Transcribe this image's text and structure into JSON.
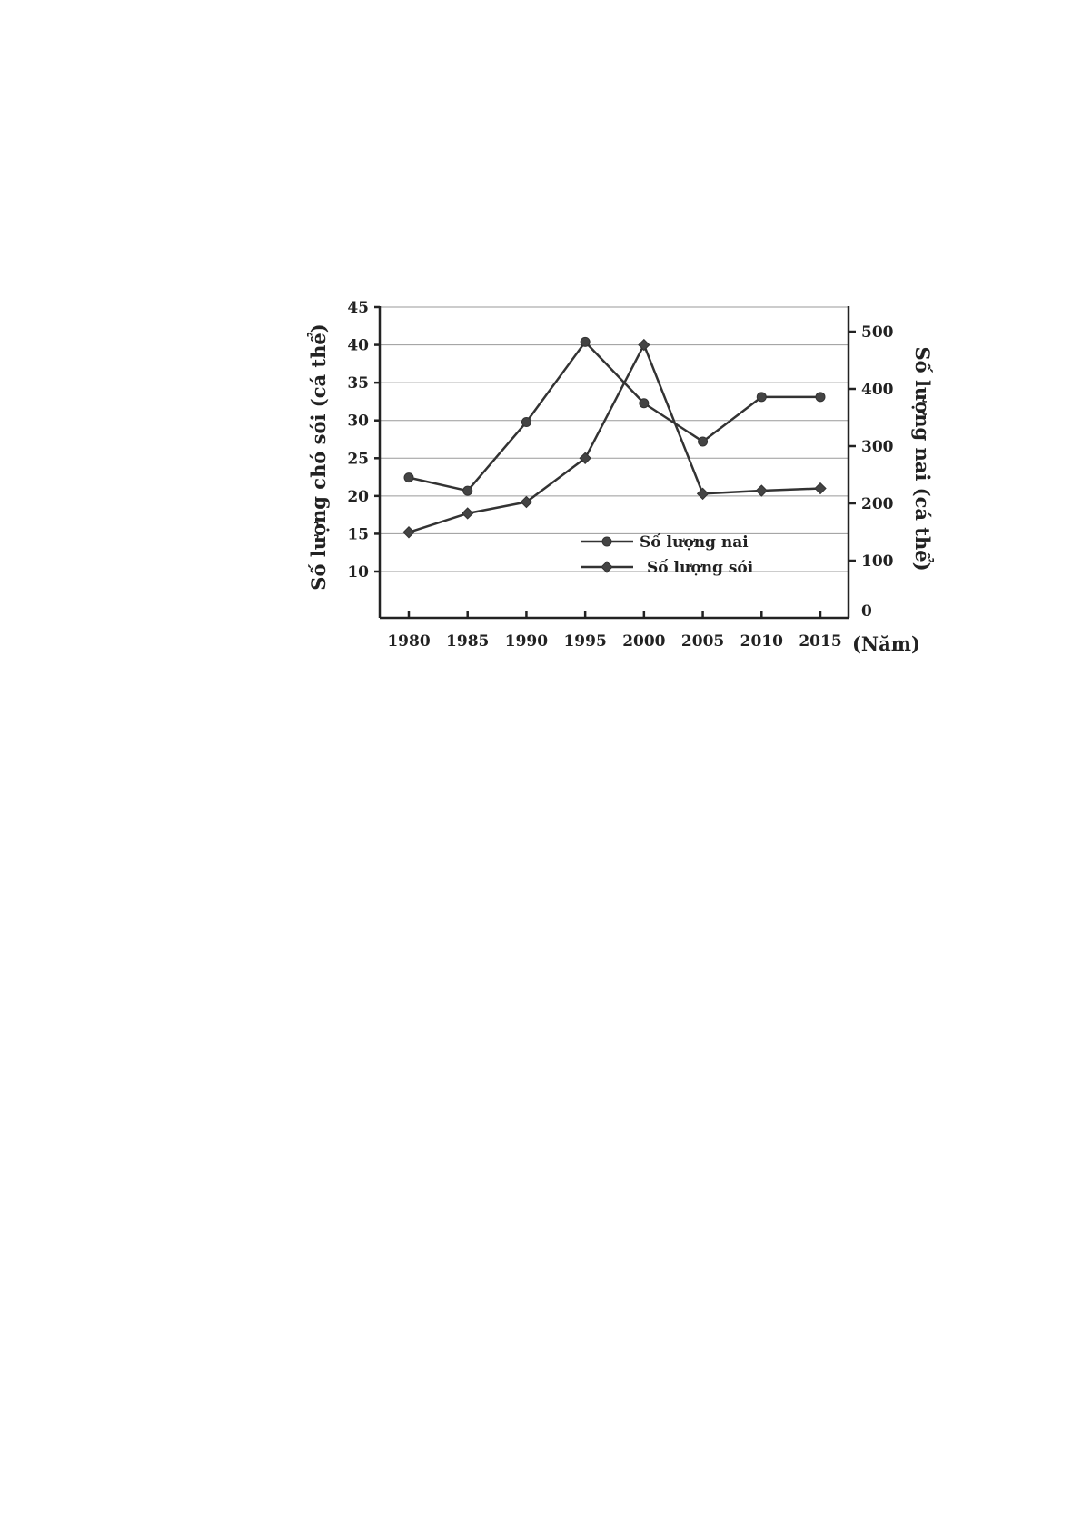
{
  "chart_data": {
    "type": "line",
    "title": "",
    "x": [
      1980,
      1985,
      1990,
      1995,
      2000,
      2005,
      2010,
      2015
    ],
    "x_tick_labels": [
      "1980",
      "1985",
      "1990",
      "1995",
      "2000",
      "2005",
      "2010",
      "2015"
    ],
    "xlabel": "(Năm)",
    "ylabel_left": "Số lượng chó sói (cá thể)",
    "ylabel_right": "Số lượng nai (cá thể)",
    "y_left_ticks": [
      "45",
      "40",
      "35",
      "30",
      "25",
      "20",
      "15",
      "10"
    ],
    "y_right_ticks": [
      "500",
      "400",
      "300",
      "200",
      "100",
      "0"
    ],
    "grid": true,
    "legend_position": "bottom-right",
    "series": [
      {
        "name": "Số lượng nai",
        "marker": "circle",
        "axis": "right",
        "values": [
          245,
          222,
          342,
          482,
          375,
          308,
          386,
          386
        ]
      },
      {
        "name": "Số lượng sói",
        "marker": "diamond",
        "axis": "left",
        "values": [
          15.2,
          17.7,
          19.2,
          25.0,
          40.0,
          20.3,
          20.7,
          21.0
        ]
      }
    ]
  }
}
